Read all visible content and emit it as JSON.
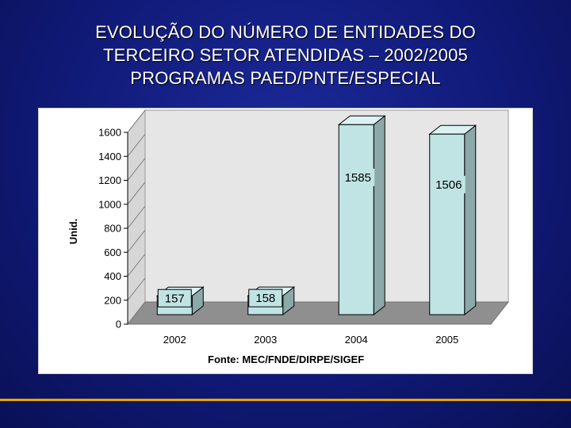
{
  "slide": {
    "title_lines": [
      "EVOLUÇÃO DO NÚMERO DE ENTIDADES DO",
      "TERCEIRO SETOR ATENDIDAS – 2002/2005",
      "PROGRAMAS PAED/PNTE/ESPECIAL"
    ]
  },
  "chart_data": {
    "type": "bar",
    "categories": [
      "2002",
      "2003",
      "2004",
      "2005"
    ],
    "values": [
      157,
      158,
      1585,
      1506
    ],
    "data_labels": [
      "157",
      "158",
      "1585",
      "1506"
    ],
    "ylabel": "Unid.",
    "xlabel": "",
    "ylim": [
      0,
      1600
    ],
    "yticks": [
      0,
      200,
      400,
      600,
      800,
      1000,
      1200,
      1400,
      1600
    ],
    "source": "Fonte: MEC/FNDE/DIRPE/SIGEF",
    "grid": false,
    "three_d": true,
    "colors": {
      "bar_front": "#c0e4e4",
      "bar_side": "#8ca8a8",
      "bar_top": "#dcf2f2",
      "wall": "#e6e6e6",
      "floor": "#8f8f8f",
      "accent_line": "#e8a400"
    }
  }
}
